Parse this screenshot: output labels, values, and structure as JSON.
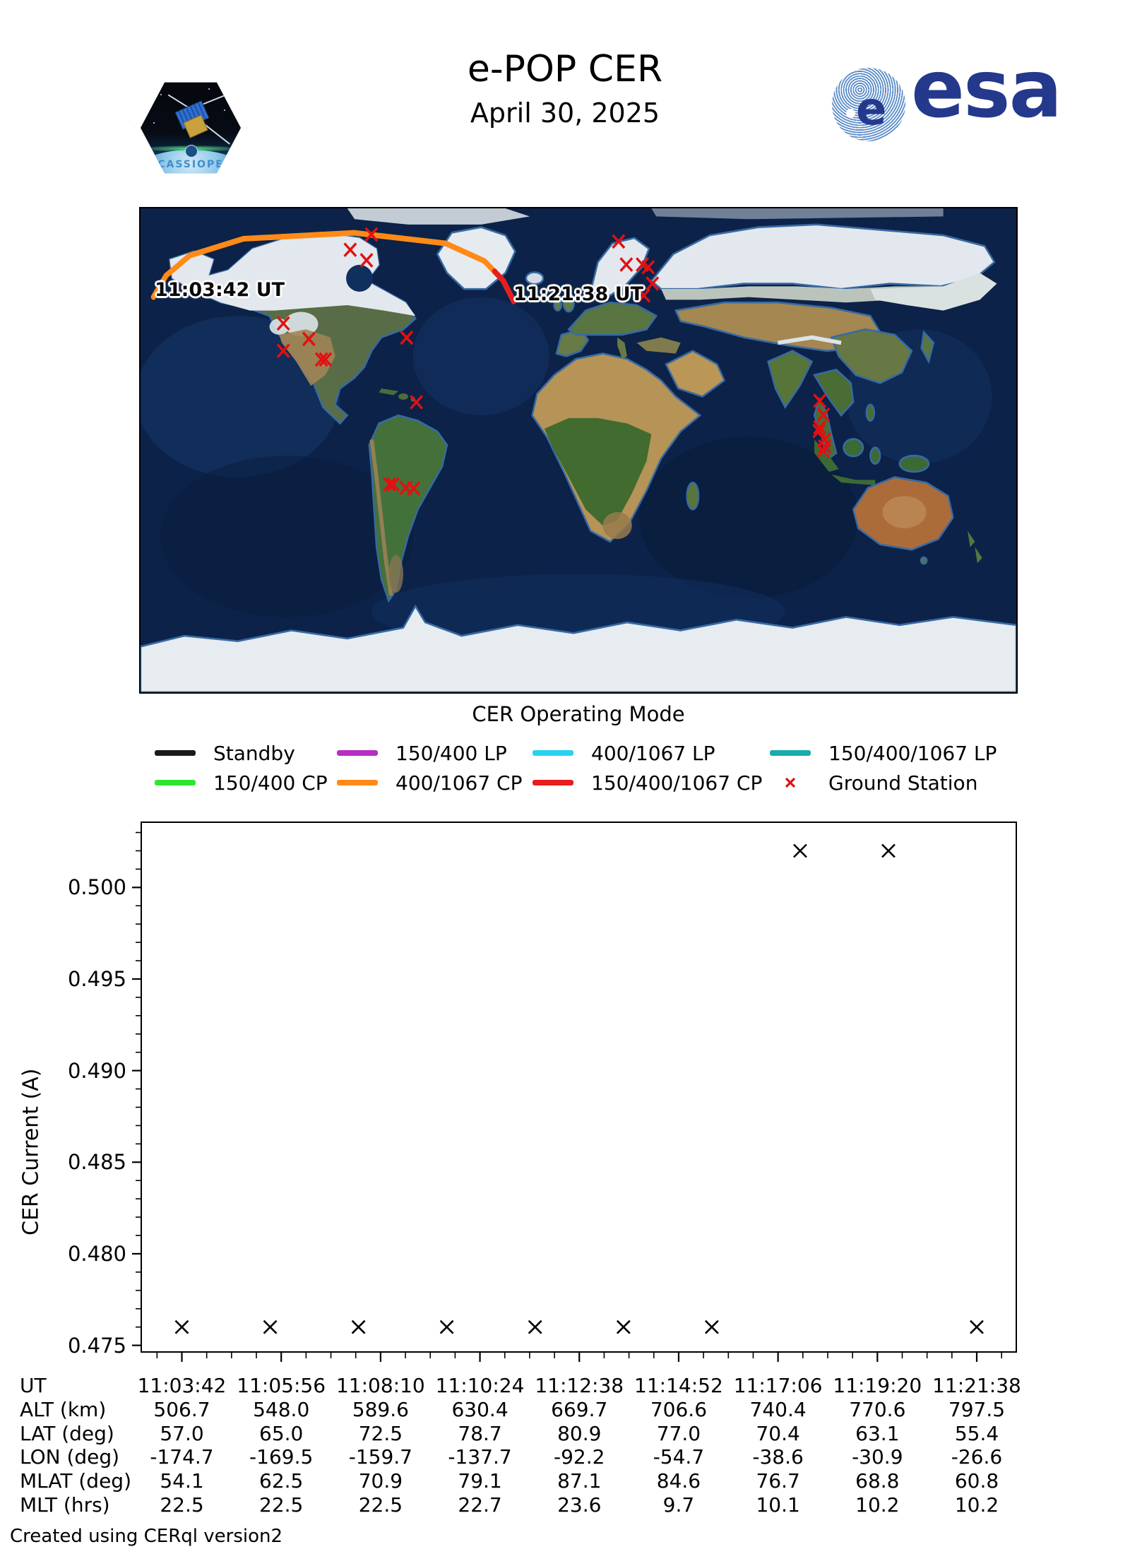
{
  "header": {
    "title": "e-POP CER",
    "date": "April 30, 2025",
    "cassiope_label": "CASSIOPE",
    "esa_wordmark": "esa",
    "esa_blue": "#24398c"
  },
  "map": {
    "start_label": "11:03:42 UT",
    "end_label": "11:21:38 UT",
    "track_mode": "400/1067 CP",
    "track_end_mode": "150/400/1067 CP",
    "track_color": "#ff8a17",
    "track_end_color": "#e81d1d",
    "station_color": "#e31010",
    "track_lonlat": [
      [
        -174.7,
        57.0
      ],
      [
        -169.5,
        65.0
      ],
      [
        -159.7,
        72.5
      ],
      [
        -137.7,
        78.7
      ],
      [
        -92.2,
        80.9
      ],
      [
        -54.7,
        77.0
      ],
      [
        -38.6,
        70.4
      ],
      [
        -30.9,
        63.1
      ],
      [
        -26.6,
        55.4
      ]
    ],
    "track_end_lonlat": [
      [
        -34.5,
        66.6
      ],
      [
        -30.9,
        63.1
      ],
      [
        -26.6,
        55.4
      ]
    ],
    "stations_lonlat": [
      [
        -85.1,
        80.3
      ],
      [
        -93.8,
        74.6
      ],
      [
        -87.1,
        70.7
      ],
      [
        -70.6,
        41.9
      ],
      [
        -121.3,
        47.2
      ],
      [
        -110.8,
        41.4
      ],
      [
        -121.3,
        37.0
      ],
      [
        -105.6,
        33.8
      ],
      [
        -104.0,
        33.8
      ],
      [
        -66.6,
        17.9
      ],
      [
        -77.6,
        -12.7
      ],
      [
        -76.2,
        -12.7
      ],
      [
        -70.9,
        -14.0
      ],
      [
        -67.7,
        -14.2
      ],
      [
        16.5,
        77.7
      ],
      [
        19.7,
        69.1
      ],
      [
        26.3,
        69.1
      ],
      [
        28.7,
        68.1
      ],
      [
        30.4,
        62.0
      ],
      [
        26.9,
        57.6
      ],
      [
        99.2,
        18.4
      ],
      [
        100.7,
        13.2
      ],
      [
        99.2,
        8.5
      ],
      [
        98.9,
        7.2
      ],
      [
        101.2,
        4.0
      ],
      [
        101.2,
        1.4
      ],
      [
        100.7,
        -0.2
      ]
    ]
  },
  "legend": {
    "title": "CER Operating Mode",
    "rows": [
      [
        {
          "label": "Standby",
          "color": "#1a1a1a",
          "marker": "line"
        },
        {
          "label": "150/400 LP",
          "color": "#b52fc4",
          "marker": "line"
        },
        {
          "label": "400/1067 LP",
          "color": "#2ad2f2",
          "marker": "line"
        },
        {
          "label": "150/400/1067 LP",
          "color": "#1aabab",
          "marker": "line"
        }
      ],
      [
        {
          "label": "150/400 CP",
          "color": "#2ee62e",
          "marker": "line"
        },
        {
          "label": "400/1067 CP",
          "color": "#ff8a17",
          "marker": "line"
        },
        {
          "label": "150/400/1067 CP",
          "color": "#e81d1d",
          "marker": "line"
        },
        {
          "label": "Ground Station",
          "color": "#e31010",
          "marker": "x"
        }
      ]
    ]
  },
  "chart_data": {
    "type": "scatter",
    "title": "",
    "xlabel": "",
    "ylabel": "CER Current (A)",
    "ylim": [
      0.4746,
      0.5036
    ],
    "yticks": [
      0.475,
      0.48,
      0.485,
      0.49,
      0.495,
      0.5
    ],
    "ytick_labels": [
      "0.475",
      "0.480",
      "0.485",
      "0.490",
      "0.495",
      "0.500"
    ],
    "xtick_labels": [
      "11:03:42",
      "11:05:56",
      "11:08:10",
      "11:10:24",
      "11:12:38",
      "11:14:52",
      "11:17:06",
      "11:19:20",
      "11:21:38"
    ],
    "marker": "x",
    "marker_color": "#000000",
    "grid": false,
    "legend_position": "none",
    "points": [
      {
        "x_frac": 0.0,
        "y": 0.476
      },
      {
        "x_frac": 0.1111,
        "y": 0.476
      },
      {
        "x_frac": 0.2222,
        "y": 0.476
      },
      {
        "x_frac": 0.3333,
        "y": 0.476
      },
      {
        "x_frac": 0.4444,
        "y": 0.476
      },
      {
        "x_frac": 0.5556,
        "y": 0.476
      },
      {
        "x_frac": 0.6667,
        "y": 0.476
      },
      {
        "x_frac": 0.7778,
        "y": 0.502
      },
      {
        "x_frac": 0.8889,
        "y": 0.502
      },
      {
        "x_frac": 1.0,
        "y": 0.476
      }
    ]
  },
  "table": {
    "rows": [
      {
        "label": "UT",
        "values": [
          "11:03:42",
          "11:05:56",
          "11:08:10",
          "11:10:24",
          "11:12:38",
          "11:14:52",
          "11:17:06",
          "11:19:20",
          "11:21:38"
        ]
      },
      {
        "label": "ALT (km)",
        "values": [
          "506.7",
          "548.0",
          "589.6",
          "630.4",
          "669.7",
          "706.6",
          "740.4",
          "770.6",
          "797.5"
        ]
      },
      {
        "label": "LAT (deg)",
        "values": [
          "57.0",
          "65.0",
          "72.5",
          "78.7",
          "80.9",
          "77.0",
          "70.4",
          "63.1",
          "55.4"
        ]
      },
      {
        "label": "LON (deg)",
        "values": [
          "-174.7",
          "-169.5",
          "-159.7",
          "-137.7",
          "-92.2",
          "-54.7",
          "-38.6",
          "-30.9",
          "-26.6"
        ]
      },
      {
        "label": "MLAT (deg)",
        "values": [
          "54.1",
          "62.5",
          "70.9",
          "79.1",
          "87.1",
          "84.6",
          "76.7",
          "68.8",
          "60.8"
        ]
      },
      {
        "label": "MLT (hrs)",
        "values": [
          "22.5",
          "22.5",
          "22.5",
          "22.7",
          "23.6",
          "9.7",
          "10.1",
          "10.2",
          "10.2"
        ]
      }
    ]
  },
  "footer": {
    "credit": "Created using CERql version2"
  }
}
